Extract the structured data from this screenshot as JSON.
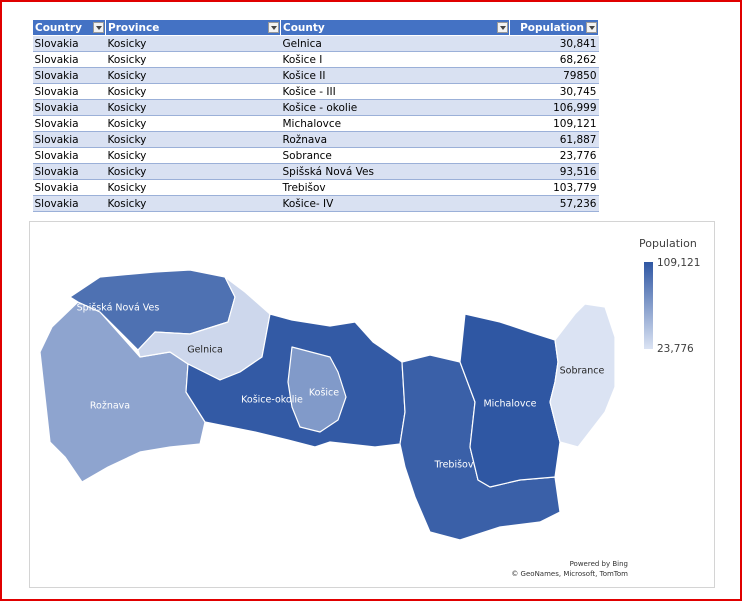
{
  "table": {
    "headers": [
      "Country",
      "Province",
      "County",
      "Population"
    ],
    "rows": [
      [
        "Slovakia",
        "Kosicky",
        "Gelnica",
        "30,841"
      ],
      [
        "Slovakia",
        "Kosicky",
        "Košice I",
        "68,262"
      ],
      [
        "Slovakia",
        "Kosicky",
        "Košice II",
        "79850"
      ],
      [
        "Slovakia",
        "Kosicky",
        "Košice - III",
        "30,745"
      ],
      [
        "Slovakia",
        "Kosicky",
        "Košice - okolie",
        "106,999"
      ],
      [
        "Slovakia",
        "Kosicky",
        "Michalovce",
        "109,121"
      ],
      [
        "Slovakia",
        "Kosicky",
        "Rožnava",
        "61,887"
      ],
      [
        "Slovakia",
        "Kosicky",
        "Sobrance",
        "23,776"
      ],
      [
        "Slovakia",
        "Kosicky",
        "Spišská Nová Ves",
        "93,516"
      ],
      [
        "Slovakia",
        "Kosicky",
        "Trebišov",
        "103,779"
      ],
      [
        "Slovakia",
        "Kosicky",
        "Košice- IV",
        "57,236"
      ]
    ]
  },
  "chart_data": {
    "type": "map",
    "legend": {
      "title": "Population",
      "max_label": "109,121",
      "min_label": "23,776",
      "max": 109121,
      "min": 23776,
      "placement": "top-right"
    },
    "colors": {
      "high": "#2f57a3",
      "low": "#dbe3f3"
    },
    "regions": [
      {
        "id": "spisska",
        "label": "Spišská Nová Ves",
        "value": 93516
      },
      {
        "id": "gelnica",
        "label": "Gelnica",
        "value": 30841
      },
      {
        "id": "roznava",
        "label": "Rožnava",
        "value": 61887
      },
      {
        "id": "kosice-okolie",
        "label": "Košice-okolie",
        "value": 106999
      },
      {
        "id": "kosice",
        "label": "Košice",
        "value": 68262
      },
      {
        "id": "trebisov",
        "label": "Trebišov",
        "value": 103779
      },
      {
        "id": "michalovce",
        "label": "Michalovce",
        "value": 109121
      },
      {
        "id": "sobrance",
        "label": "Sobrance",
        "value": 23776
      }
    ],
    "credits": [
      "Powered by Bing",
      "© GeoNames, Microsoft, TomTom"
    ]
  }
}
